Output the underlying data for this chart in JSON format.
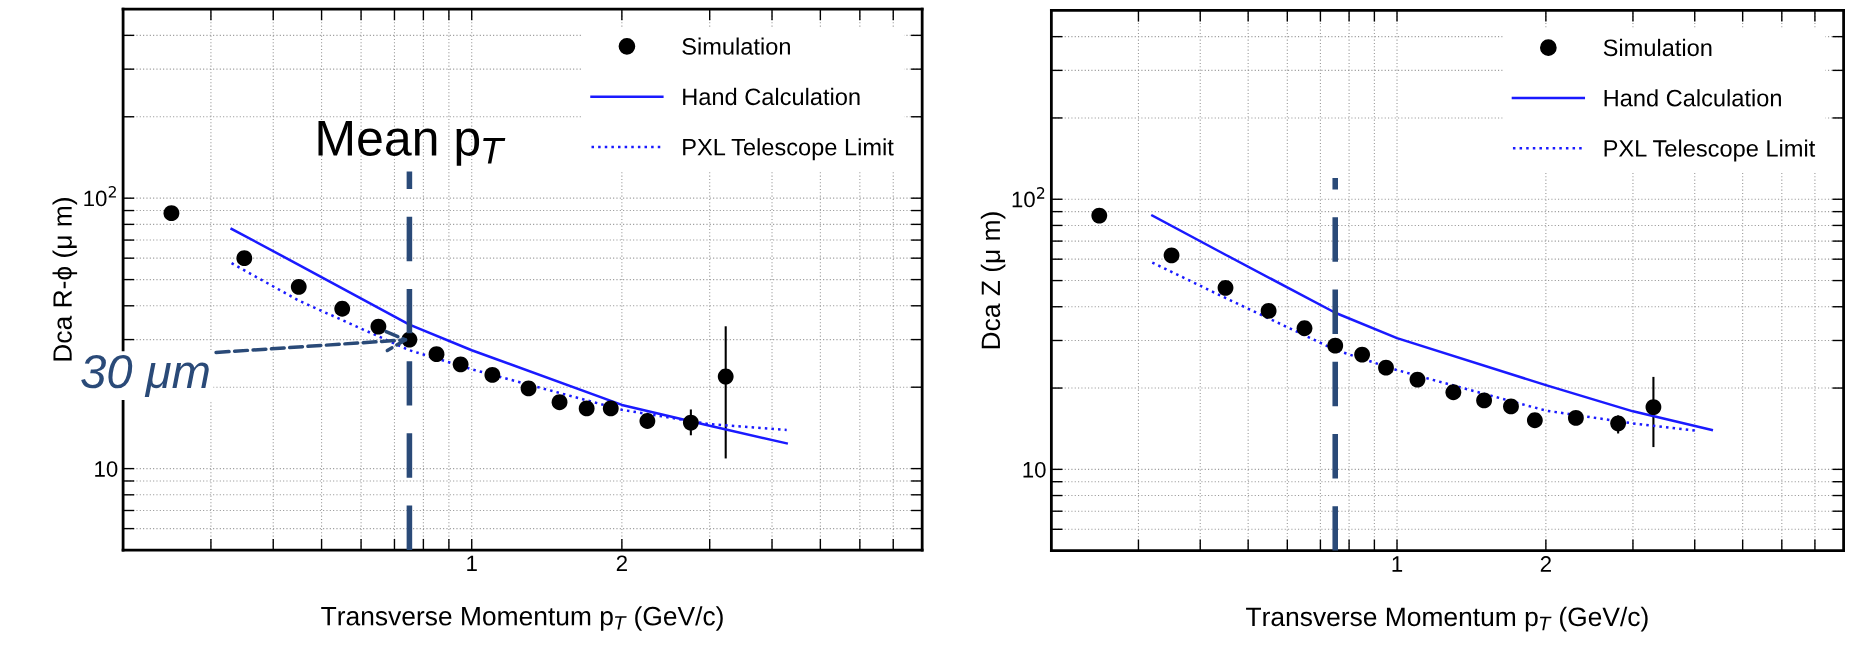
{
  "chart_data": [
    {
      "type": "scatter",
      "xlabel": "Transverse Momentum p$_{T}$ (GeV/c)",
      "ylabel": "Dca R-ϕ (μ m)",
      "log": "xy",
      "grid": true,
      "legend": "top right",
      "xlim": [
        0.2,
        8
      ],
      "ylim": [
        5,
        500
      ],
      "xticks": [
        {
          "value": 0.3,
          "label": null
        },
        {
          "value": 0.4,
          "label": null
        },
        {
          "value": 0.5,
          "label": null
        },
        {
          "value": 0.6,
          "label": null
        },
        {
          "value": 0.7,
          "label": null
        },
        {
          "value": 0.8,
          "label": null
        },
        {
          "value": 0.9,
          "label": null
        },
        1,
        2,
        {
          "value": 3,
          "label": null
        },
        {
          "value": 4,
          "label": null
        },
        {
          "value": 5,
          "label": null
        },
        {
          "value": 6,
          "label": null
        },
        {
          "value": 7,
          "label": null
        }
      ],
      "yticks": [
        {
          "value": 6,
          "label": null
        },
        {
          "value": 7,
          "label": null
        },
        {
          "value": 8,
          "label": null
        },
        {
          "value": 9,
          "label": null
        },
        10,
        {
          "value": 20,
          "label": null
        },
        {
          "value": 30,
          "label": null
        },
        {
          "value": 40,
          "label": null
        },
        {
          "value": 50,
          "label": null
        },
        {
          "value": 60,
          "label": null
        },
        {
          "value": 70,
          "label": null
        },
        {
          "value": 80,
          "label": null
        },
        {
          "value": 90,
          "label": null
        },
        {
          "value": 100,
          "label": "10$^{2}$"
        },
        {
          "value": 200,
          "label": null
        },
        {
          "value": 300,
          "label": null
        },
        {
          "value": 400,
          "label": null
        }
      ],
      "ref_lines": [
        {
          "axis": "x",
          "value": 0.75,
          "label": "Mean p$_{T}$",
          "color": "#2a4a78",
          "line_style": "dashed"
        }
      ],
      "annotations": [
        {
          "text": "30 μm",
          "x": 0.75,
          "y": 30
        }
      ],
      "series": [
        {
          "name": "Simulation",
          "color": "#000000",
          "marker": "circle",
          "x": [
            0.25,
            0.35,
            0.45,
            0.55,
            0.65,
            0.75,
            0.85,
            0.95,
            1.1,
            1.3,
            1.5,
            1.7,
            1.9,
            2.25,
            2.75,
            3.23
          ],
          "values": [
            88,
            60,
            47,
            39,
            33.5,
            30,
            26.5,
            24.3,
            22.2,
            19.8,
            17.6,
            16.7,
            16.7,
            15.0,
            14.8,
            21.9
          ],
          "errors": [
            null,
            null,
            null,
            null,
            null,
            null,
            null,
            null,
            null,
            null,
            null,
            null,
            null,
            null,
            [
              13.4,
              16.4
            ],
            [
              11.0,
              33.3
            ]
          ]
        },
        {
          "name": "Hand Calculation",
          "type": "line",
          "color": "#1a1aff",
          "line_style": "solid",
          "x": [
            0.33,
            0.45,
            0.75,
            1,
            2,
            3,
            4.28
          ],
          "values": [
            77,
            56.7,
            34.1,
            27.4,
            17.2,
            14.4,
            12.4
          ]
        },
        {
          "name": "PXL Telescope Limit",
          "type": "line",
          "color": "#1a1aff",
          "line_style": "dotted",
          "x": [
            0.33,
            0.45,
            0.75,
            1,
            2,
            3,
            4.28
          ],
          "values": [
            57.5,
            41.8,
            27.4,
            23.3,
            16.5,
            14.6,
            13.9
          ]
        }
      ]
    },
    {
      "type": "scatter",
      "xlabel": "Transverse Momentum p$_{T}$ (GeV/c)",
      "ylabel": "Dca Z (μ m)",
      "log": "xy",
      "grid": true,
      "legend": "top right",
      "xlim": [
        0.2,
        8
      ],
      "ylim": [
        5,
        500
      ],
      "xticks": [
        {
          "value": 0.3,
          "label": null
        },
        {
          "value": 0.4,
          "label": null
        },
        {
          "value": 0.5,
          "label": null
        },
        {
          "value": 0.6,
          "label": null
        },
        {
          "value": 0.7,
          "label": null
        },
        {
          "value": 0.8,
          "label": null
        },
        {
          "value": 0.9,
          "label": null
        },
        1,
        2,
        {
          "value": 3,
          "label": null
        },
        {
          "value": 4,
          "label": null
        },
        {
          "value": 5,
          "label": null
        },
        {
          "value": 6,
          "label": null
        },
        {
          "value": 7,
          "label": null
        }
      ],
      "yticks": [
        {
          "value": 6,
          "label": null
        },
        {
          "value": 7,
          "label": null
        },
        {
          "value": 8,
          "label": null
        },
        {
          "value": 9,
          "label": null
        },
        10,
        {
          "value": 20,
          "label": null
        },
        {
          "value": 30,
          "label": null
        },
        {
          "value": 40,
          "label": null
        },
        {
          "value": 50,
          "label": null
        },
        {
          "value": 60,
          "label": null
        },
        {
          "value": 70,
          "label": null
        },
        {
          "value": 80,
          "label": null
        },
        {
          "value": 90,
          "label": null
        },
        {
          "value": 100,
          "label": "10$^{2}$"
        },
        {
          "value": 200,
          "label": null
        },
        {
          "value": 300,
          "label": null
        },
        {
          "value": 400,
          "label": null
        }
      ],
      "ref_lines": [
        {
          "axis": "x",
          "value": 0.75,
          "color": "#2a4a78",
          "line_style": "dashed"
        }
      ],
      "series": [
        {
          "name": "Simulation",
          "color": "#000000",
          "marker": "circle",
          "x": [
            0.25,
            0.35,
            0.45,
            0.55,
            0.65,
            0.75,
            0.85,
            0.95,
            1.1,
            1.3,
            1.5,
            1.7,
            1.9,
            2.3,
            2.8,
            3.3
          ],
          "values": [
            87,
            62,
            47,
            38.6,
            33.3,
            28.7,
            26.6,
            23.8,
            21.5,
            19.3,
            18.0,
            17.1,
            15.2,
            15.5,
            14.8,
            17.0
          ],
          "errors": [
            null,
            null,
            null,
            null,
            null,
            null,
            null,
            null,
            null,
            null,
            null,
            null,
            null,
            null,
            [
              13.7,
              15.7
            ],
            [
              12.2,
              21.8
            ]
          ]
        },
        {
          "name": "Hand Calculation",
          "type": "line",
          "color": "#1a1aff",
          "line_style": "solid",
          "x": [
            0.32,
            0.45,
            0.75,
            1,
            2,
            3,
            4.33
          ],
          "values": [
            87,
            62.3,
            38.0,
            30.6,
            20.5,
            16.4,
            14.0
          ]
        },
        {
          "name": "PXL Telescope Limit",
          "type": "line",
          "color": "#1a1aff",
          "line_style": "dotted",
          "x": [
            0.32,
            0.45,
            0.75,
            1,
            2,
            3,
            4.05
          ],
          "values": [
            58.3,
            43.1,
            27.7,
            23.3,
            16.5,
            14.8,
            13.9
          ]
        }
      ]
    }
  ]
}
